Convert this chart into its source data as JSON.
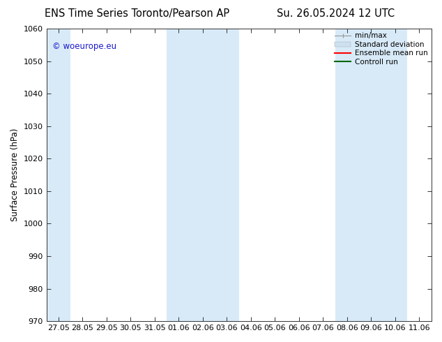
{
  "title_left": "ENS Time Series Toronto/Pearson AP",
  "title_right": "Su. 26.05.2024 12 UTC",
  "ylabel": "Surface Pressure (hPa)",
  "ylim": [
    970,
    1060
  ],
  "yticks": [
    970,
    980,
    990,
    1000,
    1010,
    1020,
    1030,
    1040,
    1050,
    1060
  ],
  "xlabels": [
    "27.05",
    "28.05",
    "29.05",
    "30.05",
    "31.05",
    "01.06",
    "02.06",
    "03.06",
    "04.06",
    "05.06",
    "06.06",
    "07.06",
    "08.06",
    "09.06",
    "10.06",
    "11.06"
  ],
  "background_color": "#ffffff",
  "plot_bg_color": "#ffffff",
  "shaded_bands": [
    {
      "xstart": -0.5,
      "xend": 0.5,
      "color": "#d8eaf8"
    },
    {
      "xstart": 4.5,
      "xend": 7.5,
      "color": "#d8eaf8"
    },
    {
      "xstart": 11.5,
      "xend": 14.5,
      "color": "#d8eaf8"
    }
  ],
  "watermark_text": "© woeurope.eu",
  "watermark_color": "#1a1acc",
  "legend_items": [
    {
      "label": "min/max",
      "color": "#999999",
      "lw": 1
    },
    {
      "label": "Standard deviation",
      "color": "#cce0f0",
      "lw": 6
    },
    {
      "label": "Ensemble mean run",
      "color": "#ff0000",
      "lw": 1.5
    },
    {
      "label": "Controll run",
      "color": "#006600",
      "lw": 1.5
    }
  ],
  "title_fontsize": 10.5,
  "tick_fontsize": 8,
  "ylabel_fontsize": 8.5,
  "watermark_fontsize": 8.5,
  "legend_fontsize": 7.5
}
